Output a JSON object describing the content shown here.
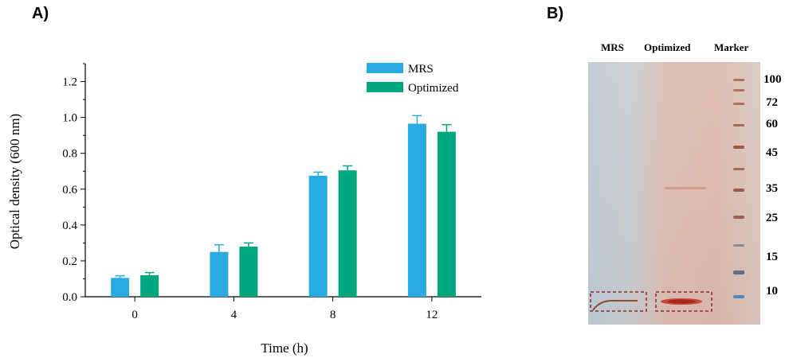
{
  "panels": {
    "a": "A)",
    "b": "B)"
  },
  "chart_data": {
    "type": "bar",
    "categories": [
      "0",
      "4",
      "8",
      "12"
    ],
    "xlabel": "Time (h)",
    "ylabel": "Optical density (600 nm)",
    "ylim": [
      0.0,
      1.3
    ],
    "yticks": [
      "0.0",
      "0.2",
      "0.4",
      "0.6",
      "0.8",
      "1.0",
      "1.2"
    ],
    "grid": false,
    "legend": "top-right",
    "series": [
      {
        "name": "MRS",
        "color": "#29abe2",
        "values": [
          0.105,
          0.25,
          0.675,
          0.965
        ],
        "errors": [
          0.012,
          0.04,
          0.02,
          0.045
        ]
      },
      {
        "name": "Optimized",
        "color": "#00a67e",
        "values": [
          0.12,
          0.28,
          0.705,
          0.92
        ],
        "errors": [
          0.015,
          0.02,
          0.025,
          0.04
        ]
      }
    ]
  },
  "gel": {
    "lanes": [
      "MRS",
      "Optimized",
      "Marker"
    ],
    "markers": [
      "100",
      "72",
      "60",
      "45",
      "35",
      "25",
      "15",
      "10"
    ]
  }
}
